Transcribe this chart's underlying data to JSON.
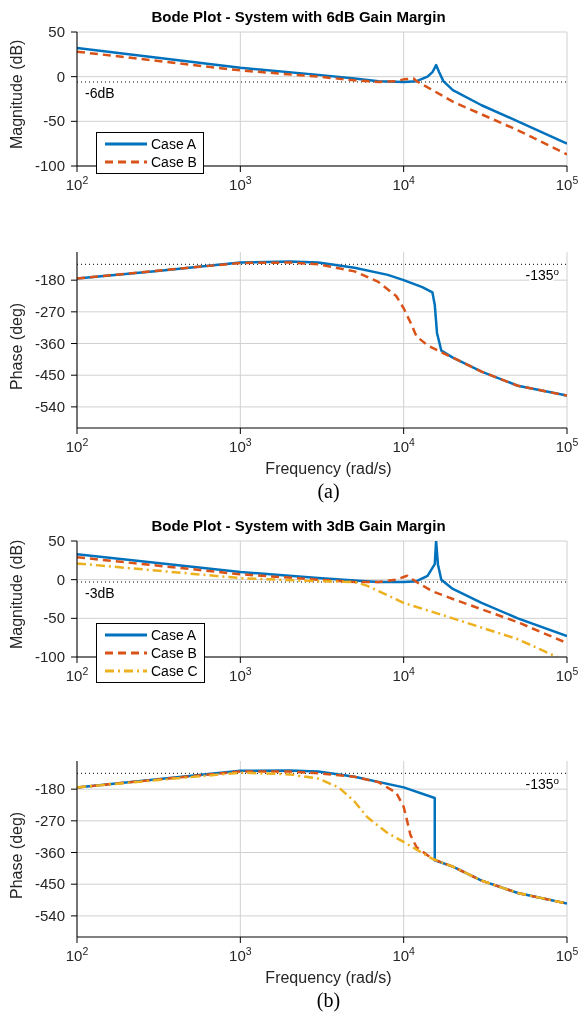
{
  "chart_data": [
    {
      "type": "line",
      "title": "Bode Plot - System with 6dB Gain Margin",
      "ylabel": "Magnitude (dB)",
      "log": "x",
      "grid": true,
      "legend": "bottom left",
      "xlim": [
        100,
        100000
      ],
      "ylim": [
        -100,
        50
      ],
      "xticks": [
        {
          "value": 100,
          "label": "10$^{2}$"
        },
        {
          "value": 1000,
          "label": "10$^{3}$"
        },
        {
          "value": 10000,
          "label": "10$^{4}$"
        },
        {
          "value": 100000,
          "label": "10$^{5}$"
        }
      ],
      "yticks": [
        -100,
        -50,
        0,
        50
      ],
      "ref_lines": [
        {
          "axis": "y",
          "value": -6,
          "label": "-6dB",
          "color": "#000000",
          "line_style": "dotted"
        }
      ],
      "series": [
        {
          "name": "Case A",
          "color": "#0072bd",
          "line_style": "solid",
          "x": [
            100,
            1000,
            3000,
            5000,
            7000,
            10000,
            12000,
            14000,
            15000,
            15800,
            16500,
            17500,
            20000,
            30000,
            50000,
            100000
          ],
          "values": [
            32,
            10,
            2,
            -2,
            -5,
            -6,
            -5,
            0,
            5,
            13,
            5,
            -5,
            -15,
            -32,
            -50,
            -75
          ]
        },
        {
          "name": "Case B",
          "color": "#d95319",
          "line_style": "dashed",
          "x": [
            100,
            1000,
            3000,
            5000,
            7000,
            9000,
            10000,
            11500,
            12000,
            15000,
            20000,
            50000,
            100000
          ],
          "values": [
            28,
            7,
            0,
            -4,
            -6,
            -5,
            -3,
            -2,
            -5,
            -15,
            -28,
            -60,
            -87
          ]
        }
      ]
    },
    {
      "type": "line",
      "xlabel": "Frequency (rad/s)",
      "ylabel": "Phase (deg)",
      "log": "x",
      "grid": true,
      "xlim": [
        100,
        100000
      ],
      "ylim": [
        -600,
        -100
      ],
      "xticks": [
        {
          "value": 100,
          "label": "10$^{2}$"
        },
        {
          "value": 1000,
          "label": "10$^{3}$"
        },
        {
          "value": 10000,
          "label": "10$^{4}$"
        },
        {
          "value": 100000,
          "label": "10$^{5}$"
        }
      ],
      "yticks": [
        -540,
        -450,
        -360,
        -270,
        -180
      ],
      "ref_lines": [
        {
          "axis": "y",
          "value": -135,
          "label": "-135$^{o}$",
          "color": "#000000",
          "line_style": "dotted"
        }
      ],
      "annotations": [
        "(a)"
      ],
      "series": [
        {
          "color": "#0072bd",
          "line_style": "solid",
          "x": [
            100,
            300,
            1000,
            2000,
            3000,
            5000,
            8000,
            10000,
            13000,
            15000,
            15500,
            16000,
            17000,
            20000,
            30000,
            50000,
            100000
          ],
          "values": [
            -175,
            -155,
            -130,
            -127,
            -130,
            -145,
            -165,
            -180,
            -200,
            -215,
            -250,
            -330,
            -380,
            -400,
            -440,
            -480,
            -508
          ]
        },
        {
          "color": "#d95319",
          "line_style": "dashed",
          "x": [
            100,
            1000,
            2000,
            3000,
            5000,
            7000,
            9000,
            10000,
            11000,
            12000,
            14000,
            17000,
            20000,
            30000,
            50000,
            100000
          ],
          "values": [
            -175,
            -131,
            -130,
            -135,
            -155,
            -185,
            -225,
            -260,
            -300,
            -340,
            -365,
            -385,
            -400,
            -440,
            -480,
            -508
          ]
        }
      ]
    },
    {
      "type": "line",
      "title": "Bode Plot - System with 3dB Gain Margin",
      "ylabel": "Magnitude (dB)",
      "log": "x",
      "grid": true,
      "legend": "bottom left",
      "xlim": [
        100,
        100000
      ],
      "ylim": [
        -100,
        50
      ],
      "xticks": [
        {
          "value": 100,
          "label": "10$^{2}$"
        },
        {
          "value": 1000,
          "label": "10$^{3}$"
        },
        {
          "value": 10000,
          "label": "10$^{4}$"
        },
        {
          "value": 100000,
          "label": "10$^{5}$"
        }
      ],
      "yticks": [
        -100,
        -50,
        0,
        50
      ],
      "ref_lines": [
        {
          "axis": "y",
          "value": -3,
          "label": "-3dB",
          "color": "#000000",
          "line_style": "dotted"
        }
      ],
      "series": [
        {
          "name": "Case A",
          "color": "#0072bd",
          "line_style": "solid",
          "x": [
            100,
            1000,
            3000,
            5000,
            7000,
            10000,
            12000,
            14000,
            15500,
            15800,
            16200,
            17000,
            20000,
            30000,
            50000,
            100000
          ],
          "values": [
            33,
            10,
            2,
            -1,
            -3,
            -3,
            -2,
            5,
            20,
            50,
            20,
            0,
            -12,
            -30,
            -50,
            -73
          ]
        },
        {
          "name": "Case B",
          "color": "#d95319",
          "line_style": "dashed",
          "x": [
            100,
            1000,
            3000,
            5000,
            7000,
            9000,
            10500,
            12000,
            15000,
            20000,
            50000,
            100000
          ],
          "values": [
            29,
            7,
            0,
            -3,
            -3,
            0,
            5,
            -3,
            -15,
            -25,
            -55,
            -82
          ]
        },
        {
          "name": "Case C",
          "color": "#edb120",
          "line_style": "dashdot",
          "x": [
            100,
            1000,
            3000,
            5000,
            6000,
            10000,
            20000,
            50000,
            87000
          ],
          "values": [
            21,
            2,
            -2,
            -3,
            -8,
            -30,
            -50,
            -77,
            -100
          ]
        }
      ]
    },
    {
      "type": "line",
      "xlabel": "Frequency (rad/s)",
      "ylabel": "Phase (deg)",
      "log": "x",
      "grid": true,
      "xlim": [
        100,
        100000
      ],
      "ylim": [
        -600,
        -100
      ],
      "xticks": [
        {
          "value": 100,
          "label": "10$^{2}$"
        },
        {
          "value": 1000,
          "label": "10$^{3}$"
        },
        {
          "value": 10000,
          "label": "10$^{4}$"
        },
        {
          "value": 100000,
          "label": "10$^{5}$"
        }
      ],
      "yticks": [
        -540,
        -450,
        -360,
        -270,
        -180
      ],
      "ref_lines": [
        {
          "axis": "y",
          "value": -135,
          "label": "-135$^{o}$",
          "color": "#000000",
          "line_style": "dotted"
        }
      ],
      "annotations": [
        "(b)"
      ],
      "series": [
        {
          "color": "#0072bd",
          "line_style": "solid",
          "x": [
            100,
            1000,
            2000,
            3000,
            5000,
            10000,
            15500,
            15500,
            20000,
            30000,
            50000,
            100000
          ],
          "values": [
            -175,
            -128,
            -127,
            -130,
            -145,
            -175,
            -205,
            -382,
            -400,
            -440,
            -475,
            -505
          ]
        },
        {
          "color": "#d95319",
          "line_style": "dashed",
          "x": [
            100,
            1000,
            2000,
            3000,
            5000,
            7000,
            9000,
            10000,
            10500,
            11000,
            12000,
            15000,
            20000,
            30000,
            50000,
            100000
          ],
          "values": [
            -175,
            -130,
            -130,
            -135,
            -145,
            -160,
            -190,
            -230,
            -270,
            -310,
            -345,
            -378,
            -400,
            -440,
            -475,
            -505
          ]
        },
        {
          "color": "#edb120",
          "line_style": "dashdot",
          "x": [
            100,
            1000,
            2000,
            3000,
            4000,
            5000,
            6000,
            8000,
            10000,
            15000,
            20000,
            30000,
            50000,
            100000
          ],
          "values": [
            -175,
            -133,
            -138,
            -150,
            -175,
            -215,
            -260,
            -305,
            -330,
            -378,
            -400,
            -440,
            -475,
            -505
          ]
        }
      ]
    }
  ]
}
